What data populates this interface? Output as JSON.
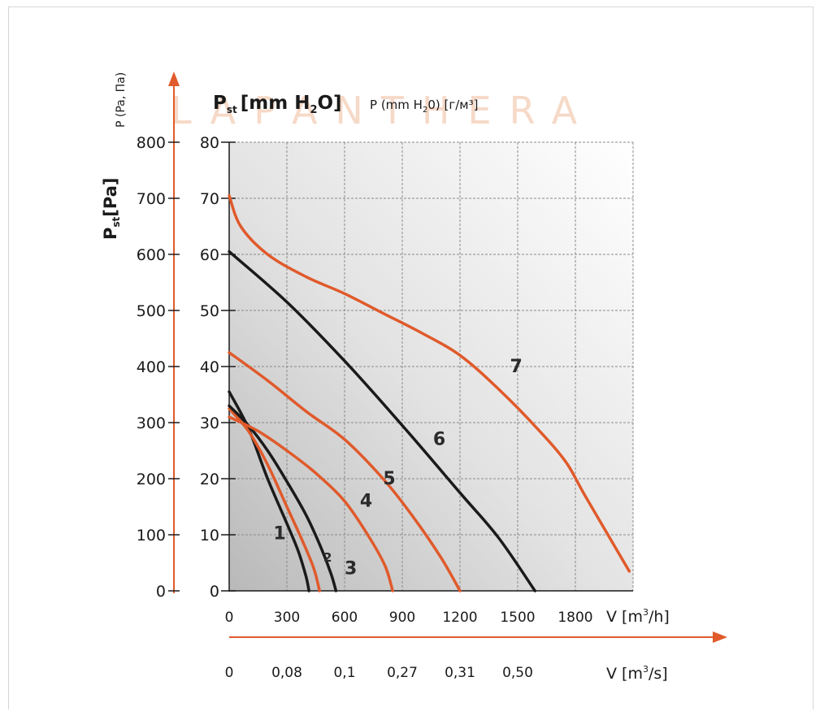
{
  "watermark": "LAPANTHERA",
  "colors": {
    "accent": "#e05a2b",
    "dark": "#1a1a1a",
    "grid": "#8a8a8a"
  },
  "labels": {
    "left_top_title": "P (Pa, Па)",
    "left_main_title": "P",
    "left_main_sub": "st",
    "left_main_unit": "[Pa]",
    "top_main_title": "P",
    "top_main_sub": "st",
    "top_main_unit": "[mm H",
    "top_main_2": "2",
    "top_main_end": "O]",
    "top_second": "P (mm H",
    "top_second_2": "2",
    "top_second_end": "0) [г/м³]",
    "x1_unit": "V [m",
    "x1_unit_sup": "3",
    "x1_unit_end": "/h]",
    "x2_unit": "V [m",
    "x2_unit_sup": "3",
    "x2_unit_end": "/s]"
  },
  "chart_data": {
    "type": "line",
    "title": "",
    "xlabel": "V [m³/h]",
    "ylabel": "Pst [Pa]",
    "xlim": [
      0,
      2100
    ],
    "ylim": [
      0,
      800
    ],
    "grid": true,
    "x_ticks": [
      "0",
      "300",
      "600",
      "900",
      "1200",
      "1500",
      "1800"
    ],
    "x_ticks_secondary": [
      "0",
      "0,08",
      "0,1",
      "0,27",
      "0,31",
      "0,50"
    ],
    "y_ticks_pa": [
      "0",
      "100",
      "200",
      "300",
      "400",
      "500",
      "600",
      "700",
      "800"
    ],
    "y_ticks_mm": [
      "0",
      "10",
      "20",
      "30",
      "40",
      "50",
      "60",
      "70",
      "80"
    ],
    "series": [
      {
        "name": "1",
        "color": "#1a1a1a",
        "label_at": [
          230,
          92
        ],
        "x": [
          0,
          100,
          200,
          300,
          360,
          400,
          415
        ],
        "y": [
          355,
          290,
          200,
          120,
          70,
          25,
          0
        ]
      },
      {
        "name": "2",
        "color": "#e05a2b",
        "label_at": [
          490,
          52
        ],
        "x": [
          0,
          100,
          200,
          300,
          380,
          440,
          470
        ],
        "y": [
          325,
          285,
          225,
          150,
          90,
          40,
          0
        ]
      },
      {
        "name": "3",
        "color": "#1a1a1a",
        "label_at": [
          600,
          30
        ],
        "x": [
          0,
          100,
          200,
          300,
          400,
          480,
          530,
          555
        ],
        "y": [
          330,
          295,
          250,
          195,
          135,
          75,
          30,
          0
        ]
      },
      {
        "name": "4",
        "color": "#e05a2b",
        "label_at": [
          680,
          150
        ],
        "x": [
          0,
          150,
          300,
          450,
          600,
          720,
          810,
          850
        ],
        "y": [
          310,
          285,
          250,
          210,
          160,
          100,
          45,
          0
        ]
      },
      {
        "name": "5",
        "color": "#e05a2b",
        "label_at": [
          800,
          190
        ],
        "x": [
          0,
          200,
          400,
          600,
          800,
          950,
          1100,
          1200
        ],
        "y": [
          425,
          375,
          320,
          270,
          200,
          135,
          60,
          0
        ]
      },
      {
        "name": "6",
        "color": "#1a1a1a",
        "label_at": [
          1060,
          260
        ],
        "x": [
          0,
          300,
          600,
          900,
          1200,
          1400,
          1590
        ],
        "y": [
          605,
          515,
          410,
          295,
          175,
          95,
          0
        ]
      },
      {
        "name": "7",
        "color": "#e05a2b",
        "label_at": [
          1460,
          390
        ],
        "x": [
          0,
          60,
          200,
          400,
          600,
          800,
          1000,
          1200,
          1400,
          1600,
          1750,
          1850,
          2080
        ],
        "y": [
          705,
          650,
          600,
          560,
          530,
          495,
          460,
          420,
          360,
          290,
          230,
          170,
          35
        ]
      }
    ]
  }
}
